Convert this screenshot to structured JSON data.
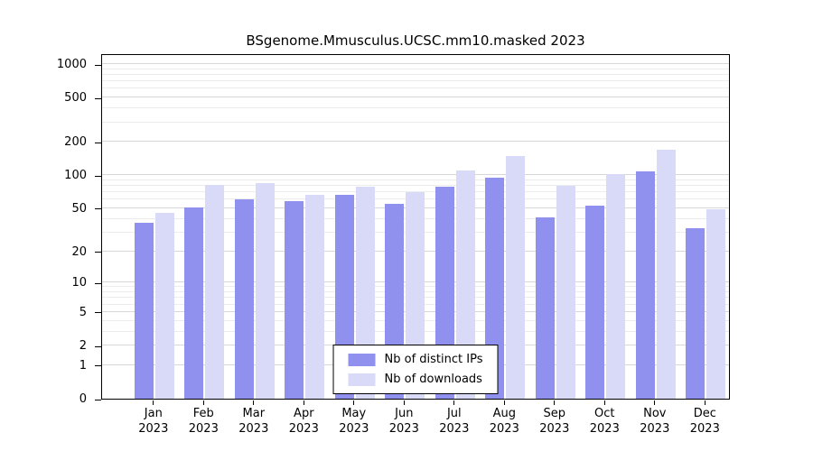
{
  "chart_data": {
    "type": "bar",
    "title": "BSgenome.Mmusculus.UCSC.mm10.masked 2023",
    "scale": "log1p",
    "grid": true,
    "legend_position": "bottom-center",
    "x_year": "2023",
    "categories": [
      "Jan",
      "Feb",
      "Mar",
      "Apr",
      "May",
      "Jun",
      "Jul",
      "Aug",
      "Sep",
      "Oct",
      "Nov",
      "Dec"
    ],
    "y_ticks": [
      0,
      1,
      2,
      5,
      10,
      20,
      50,
      100,
      200,
      500,
      1000
    ],
    "ylim": [
      0,
      1000
    ],
    "series": [
      {
        "name": "Nb of distinct IPs",
        "color": "#9090ee",
        "values": [
          37,
          51,
          60,
          58,
          66,
          55,
          78,
          95,
          41,
          53,
          108,
          33
        ]
      },
      {
        "name": "Nb of downloads",
        "color": "#d9d9f8",
        "values": [
          45,
          82,
          84,
          66,
          78,
          70,
          110,
          150,
          80,
          102,
          170,
          49
        ]
      }
    ]
  }
}
